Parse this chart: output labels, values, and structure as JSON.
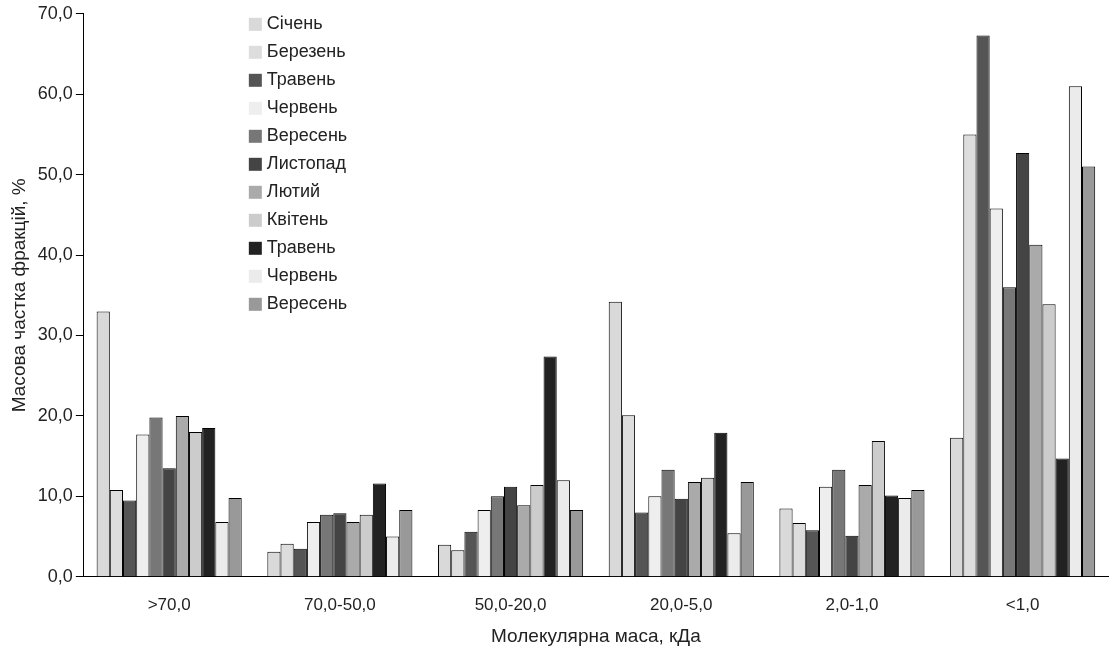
{
  "chart_data": {
    "type": "bar",
    "xlabel": "Молекулярна маса, кДа",
    "ylabel": "Масова частка фракцій, %",
    "categories": [
      ">70,0",
      "70,0-50,0",
      "50,0-20,0",
      "20,0-5,0",
      "2,0-1,0",
      "<1,0"
    ],
    "ylim": [
      0,
      70
    ],
    "yticks": [
      {
        "value": 0,
        "label": "0,0"
      },
      {
        "value": 10,
        "label": "10,0"
      },
      {
        "value": 20,
        "label": "20,0"
      },
      {
        "value": 30,
        "label": "30,0"
      },
      {
        "value": 40,
        "label": "40,0"
      },
      {
        "value": 50,
        "label": "50,0"
      },
      {
        "value": 60,
        "label": "60,0"
      },
      {
        "value": 70,
        "label": "70,0"
      }
    ],
    "grid": false,
    "legend": "top left",
    "series": [
      {
        "name": "Січень",
        "color": "#d9d9d9",
        "values": [
          33.0,
          3.1,
          4.0,
          34.2,
          8.5,
          17.3
        ]
      },
      {
        "name": "Березень",
        "color": "#dddddd",
        "values": [
          10.8,
          4.1,
          3.3,
          20.1,
          6.7,
          55.0
        ]
      },
      {
        "name": "Травень",
        "color": "#555555",
        "values": [
          9.5,
          3.5,
          5.6,
          8.0,
          5.8,
          67.3
        ]
      },
      {
        "name": "Червень",
        "color": "#eeeeee",
        "values": [
          17.7,
          6.8,
          8.3,
          10.0,
          11.2,
          45.8
        ]
      },
      {
        "name": "Вересень",
        "color": "#777777",
        "values": [
          19.8,
          7.7,
          10.0,
          13.3,
          13.3,
          36.0
        ]
      },
      {
        "name": "Листопад",
        "color": "#444444",
        "values": [
          13.5,
          7.9,
          11.2,
          9.7,
          5.1,
          52.7
        ]
      },
      {
        "name": "Лютий",
        "color": "#aaaaaa",
        "values": [
          20.0,
          6.8,
          8.9,
          11.8,
          11.4,
          41.3
        ]
      },
      {
        "name": "Квітень",
        "color": "#cccccc",
        "values": [
          18.0,
          7.7,
          11.4,
          12.3,
          16.9,
          33.9
        ]
      },
      {
        "name": "Травень",
        "color": "#222222",
        "values": [
          18.5,
          11.6,
          27.4,
          17.9,
          10.1,
          14.7
        ]
      },
      {
        "name": "Червень",
        "color": "#ebebeb",
        "values": [
          6.8,
          5.0,
          12.0,
          5.4,
          9.8,
          61.0
        ]
      },
      {
        "name": "Вересень",
        "color": "#999999",
        "values": [
          9.8,
          8.3,
          8.3,
          11.8,
          10.8,
          51.0
        ]
      }
    ]
  }
}
